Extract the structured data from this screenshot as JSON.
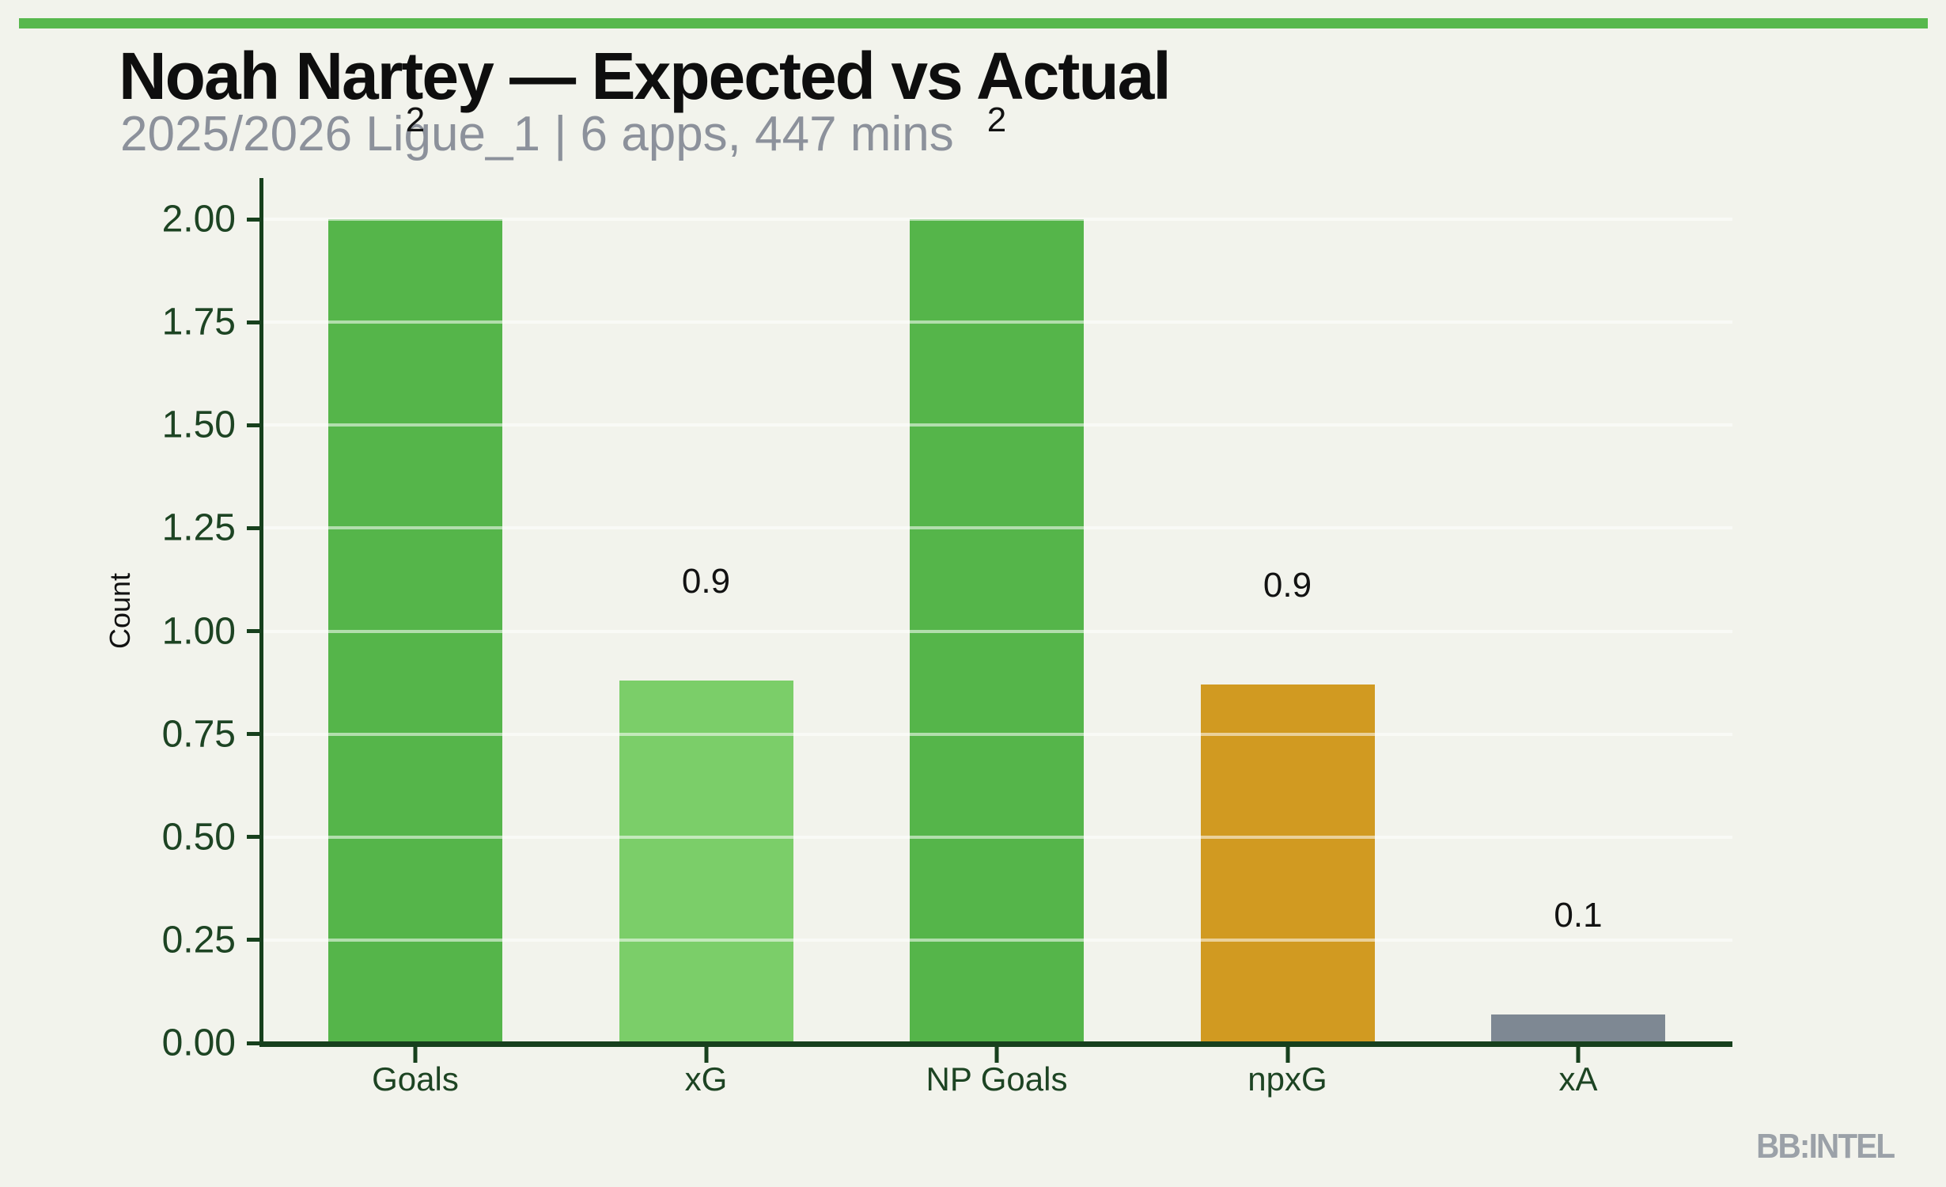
{
  "page": {
    "background_color": "#f2f3ec",
    "accent_stripe_color": "#57b84d"
  },
  "header": {
    "title": "Noah Nartey — Expected vs Actual",
    "subtitle": "2025/2026 Ligue_1 | 6 apps, 447 mins"
  },
  "watermark": "BB:INTEL",
  "chart_data": {
    "type": "bar",
    "title": "Noah Nartey — Expected vs Actual",
    "subtitle": "2025/2026 Ligue_1 | 6 apps, 447 mins",
    "categories": [
      "Goals",
      "xG",
      "NP Goals",
      "npxG",
      "xA"
    ],
    "values": [
      2.0,
      0.88,
      2.0,
      0.87,
      0.07
    ],
    "bar_labels": [
      "2",
      "0.9",
      "2",
      "0.9",
      "0.1"
    ],
    "bar_colors": [
      "#55b54a",
      "#7bce69",
      "#55b54a",
      "#d19a21",
      "#7e8893"
    ],
    "xlabel": "",
    "ylabel": "Count",
    "ylim": [
      0,
      2.0
    ],
    "yticks": [
      "0.00",
      "0.25",
      "0.50",
      "0.75",
      "1.00",
      "1.25",
      "1.50",
      "1.75",
      "2.00"
    ],
    "grid": "horizontal-light",
    "legend_position": "none",
    "axis_color": "#17401d",
    "tick_label_color": "#1d4423"
  }
}
